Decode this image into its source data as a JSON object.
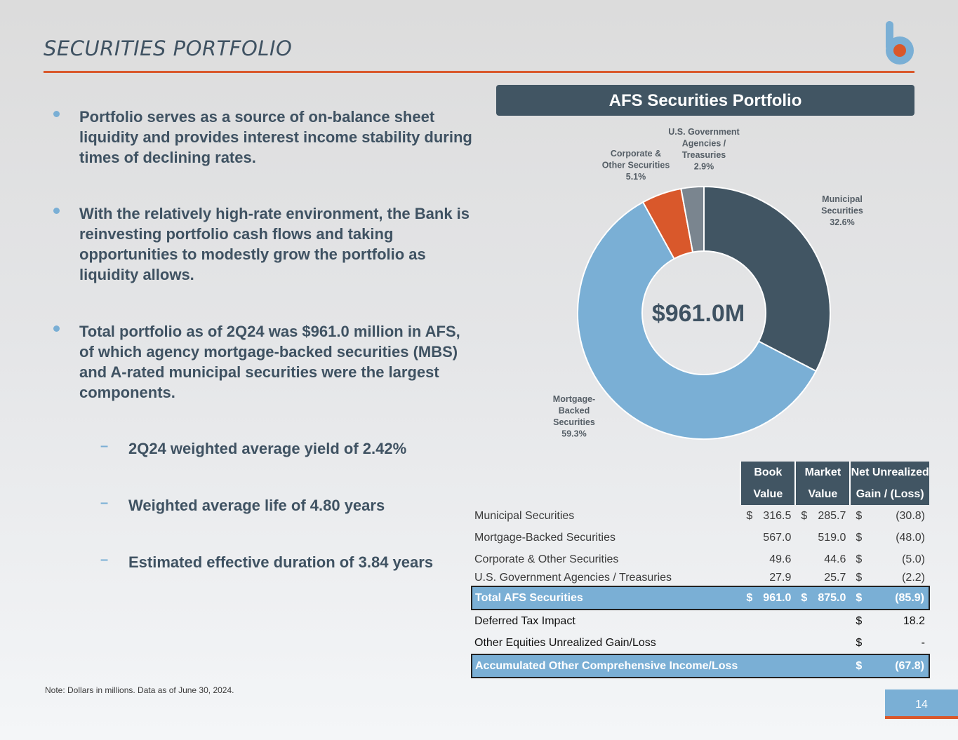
{
  "header": {
    "title": "SECURITIES PORTFOLIO"
  },
  "colors": {
    "accent_orange": "#d9582b",
    "dark_slate": "#415563",
    "light_blue": "#7aafd5",
    "gray": "#7a858f"
  },
  "bullets": [
    {
      "text": "Portfolio serves as a source of on-balance sheet liquidity and provides interest income stability during times of declining rates."
    },
    {
      "text": "With the relatively high-rate environment, the Bank is reinvesting portfolio cash flows and taking opportunities to modestly grow the portfolio as liquidity allows."
    },
    {
      "text": "Total portfolio as of 2Q24 was $961.0 million in AFS, of which agency mortgage-backed securities (MBS) and A-rated municipal securities were the largest components."
    }
  ],
  "sub_bullets": [
    {
      "text": "2Q24 weighted average yield of 2.42%"
    },
    {
      "text": "Weighted average life of 4.80 years"
    },
    {
      "text": "Estimated effective duration of 3.84 years"
    }
  ],
  "panel": {
    "title": "AFS Securities Portfolio"
  },
  "chart_data": {
    "type": "pie",
    "title": "AFS Securities Portfolio",
    "center_label": "$961.0M",
    "slices": [
      {
        "label": "Municipal Securities",
        "value": 32.6,
        "value_label": "32.6%",
        "color": "#415563"
      },
      {
        "label": "Mortgage-Backed Securities",
        "value": 59.3,
        "value_label": "59.3%",
        "color": "#7aafd5"
      },
      {
        "label": "Corporate & Other Securities",
        "value": 5.1,
        "value_label": "5.1%",
        "color": "#d9582b"
      },
      {
        "label": "U.S. Government Agencies / Treasuries",
        "value": 2.9,
        "value_label": "2.9%",
        "color": "#7a858f"
      }
    ]
  },
  "table": {
    "headers": [
      {
        "line1": "Book",
        "line2": "Value"
      },
      {
        "line1": "Market",
        "line2": "Value"
      },
      {
        "line1": "Net Unrealized",
        "line2": "Gain / (Loss)"
      }
    ],
    "rows": [
      {
        "label": "Municipal Securities",
        "book_dollar": "$",
        "book": "316.5",
        "market_dollar": "$",
        "market": "285.7",
        "gain_dollar": "$",
        "gain": "(30.8)"
      },
      {
        "label": "Mortgage-Backed Securities",
        "book_dollar": "",
        "book": "567.0",
        "market_dollar": "",
        "market": "519.0",
        "gain_dollar": "$",
        "gain": "(48.0)"
      },
      {
        "label": "Corporate & Other Securities",
        "book_dollar": "",
        "book": "49.6",
        "market_dollar": "",
        "market": "44.6",
        "gain_dollar": "$",
        "gain": "(5.0)"
      },
      {
        "label": "U.S. Government Agencies / Treasuries",
        "book_dollar": "",
        "book": "27.9",
        "market_dollar": "",
        "market": "25.7",
        "gain_dollar": "$",
        "gain": "(2.2)"
      }
    ],
    "total": {
      "label": "Total AFS Securities",
      "book_dollar": "$",
      "book": "961.0",
      "market_dollar": "$",
      "market": "875.0",
      "gain_dollar": "$",
      "gain": "(85.9)"
    },
    "deferred": {
      "label": "Deferred Tax Impact",
      "dollar": "$",
      "value": "18.2"
    },
    "other_equities": {
      "label": "Other Equities Unrealized Gain/Loss",
      "dollar": "$",
      "value": "-"
    },
    "aoci": {
      "label": "Accumulated Other Comprehensive Income/Loss",
      "dollar": "$",
      "value": "(67.8)"
    }
  },
  "footer": {
    "note": "Note: Dollars in millions. Data as of June 30, 2024.",
    "page_number": "14"
  }
}
